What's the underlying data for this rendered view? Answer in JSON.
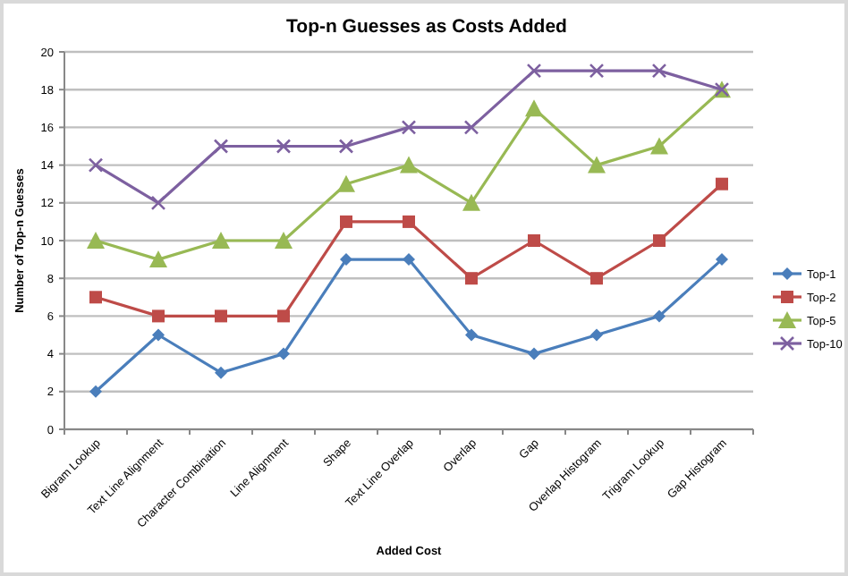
{
  "chart_data": {
    "type": "line",
    "title": "Top-n Guesses as Costs Added",
    "xlabel": "Added Cost",
    "ylabel": "Number of Top-n Guesses",
    "categories": [
      "Bigram Lookup",
      "Text Line Alignment",
      "Character Combination",
      "Line Alignment",
      "Shape",
      "Text Line Overlap",
      "Overlap",
      "Gap",
      "Overlap Histogram",
      "Trigram Lookup",
      "Gap Histogram"
    ],
    "series": [
      {
        "name": "Top-1",
        "color": "#4a7ebb",
        "marker": "diamond",
        "values": [
          2,
          5,
          3,
          4,
          9,
          9,
          5,
          4,
          5,
          6,
          9
        ]
      },
      {
        "name": "Top-2",
        "color": "#be4b48",
        "marker": "square",
        "values": [
          7,
          6,
          6,
          6,
          11,
          11,
          8,
          10,
          8,
          10,
          13
        ]
      },
      {
        "name": "Top-5",
        "color": "#98b954",
        "marker": "triangle",
        "values": [
          10,
          9,
          10,
          10,
          13,
          14,
          12,
          17,
          14,
          15,
          18
        ]
      },
      {
        "name": "Top-10",
        "color": "#7d60a0",
        "marker": "cross",
        "values": [
          14,
          12,
          15,
          15,
          15,
          16,
          16,
          19,
          19,
          19,
          18
        ]
      }
    ],
    "ylim": [
      0,
      20
    ],
    "yticks": [
      0,
      2,
      4,
      6,
      8,
      10,
      12,
      14,
      16,
      18,
      20
    ],
    "grid": "y",
    "legend": "right"
  }
}
